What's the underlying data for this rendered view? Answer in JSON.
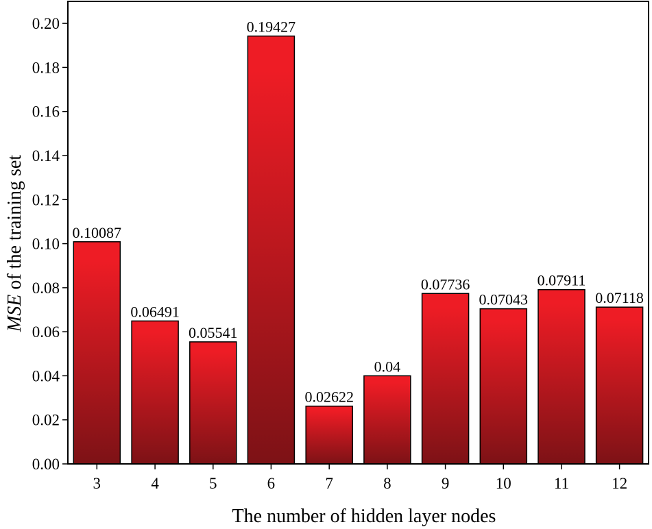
{
  "chart_data": {
    "type": "bar",
    "title": "",
    "xlabel": "The number of hidden layer nodes",
    "ylabel_italic": "MSE",
    "ylabel_rest": " of the training set",
    "categories": [
      "3",
      "4",
      "5",
      "6",
      "7",
      "8",
      "9",
      "10",
      "11",
      "12"
    ],
    "values": [
      0.10087,
      0.06491,
      0.05541,
      0.19427,
      0.02622,
      0.04,
      0.07736,
      0.07043,
      0.07911,
      0.07118
    ],
    "value_labels": [
      "0.10087",
      "0.06491",
      "0.05541",
      "0.19427",
      "0.02622",
      "0.04",
      "0.07736",
      "0.07043",
      "0.07911",
      "0.07118"
    ],
    "ylim": [
      0,
      0.21
    ],
    "yticks": [
      0.0,
      0.02,
      0.04,
      0.06,
      0.08,
      0.1,
      0.12,
      0.14,
      0.16,
      0.18,
      0.2
    ],
    "ytick_labels": [
      "0.00",
      "0.02",
      "0.04",
      "0.06",
      "0.08",
      "0.10",
      "0.12",
      "0.14",
      "0.16",
      "0.18",
      "0.20"
    ],
    "grid": false,
    "legend": "none",
    "colors": {
      "bar_top": "#ee1c25",
      "bar_bottom": "#7d1216",
      "bar_stroke": "#000000"
    }
  }
}
